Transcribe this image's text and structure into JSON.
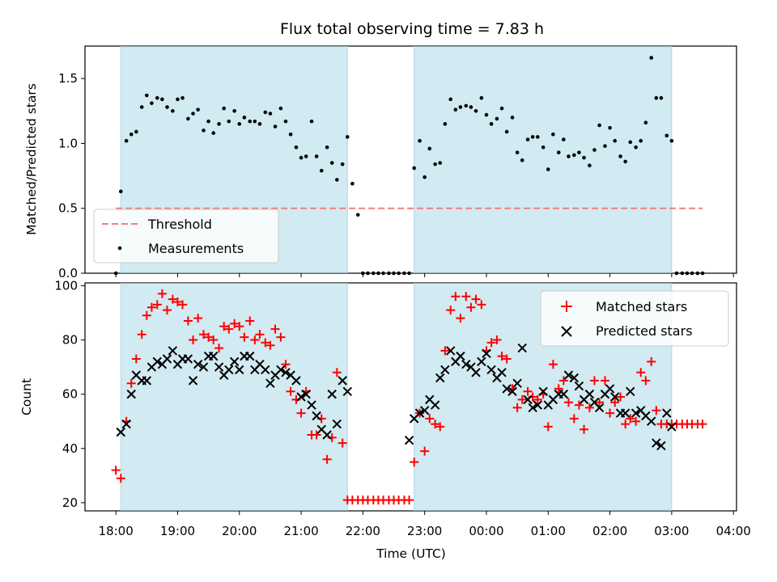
{
  "colors": {
    "band": "#add8e6",
    "threshold": "#f08080",
    "measurements": "#000000",
    "matched": "#ff0000",
    "predicted": "#000000"
  },
  "chart_data": [
    {
      "type": "scatter",
      "title": "Flux total observing time = 7.83 h",
      "xlabel": "",
      "ylabel": "Matched/Predicted stars",
      "xlim": [
        -0.5,
        10.05
      ],
      "ylim": [
        0,
        1.75
      ],
      "yticks": [
        0.0,
        0.5,
        1.0,
        1.5
      ],
      "ytick_labels": [
        "0.0",
        "0.5",
        "1.0",
        "1.5"
      ],
      "xticks": [
        0,
        1,
        2,
        3,
        4,
        5,
        6,
        7,
        8,
        9,
        10
      ],
      "legend": [
        "Threshold",
        "Measurements"
      ],
      "legend_position": "lower left",
      "threshold": {
        "y": 0.5,
        "x_range": [
          0,
          9.5
        ],
        "style": "dashed"
      },
      "observing_bands": [
        [
          0.08,
          3.75
        ],
        [
          4.83,
          9.0
        ]
      ],
      "series": [
        {
          "name": "Measurements",
          "x": [
            0.0,
            0.08,
            0.17,
            0.25,
            0.33,
            0.42,
            0.5,
            0.58,
            0.67,
            0.75,
            0.83,
            0.92,
            1.0,
            1.08,
            1.17,
            1.25,
            1.33,
            1.42,
            1.5,
            1.58,
            1.67,
            1.75,
            1.83,
            1.92,
            2.0,
            2.08,
            2.17,
            2.25,
            2.33,
            2.42,
            2.5,
            2.58,
            2.67,
            2.75,
            2.83,
            2.92,
            3.0,
            3.08,
            3.17,
            3.25,
            3.33,
            3.42,
            3.5,
            3.58,
            3.67,
            3.75,
            3.83,
            3.92,
            4.0,
            4.08,
            4.17,
            4.25,
            4.33,
            4.42,
            4.5,
            4.58,
            4.67,
            4.75,
            4.83,
            4.92,
            5.0,
            5.08,
            5.17,
            5.25,
            5.33,
            5.42,
            5.5,
            5.58,
            5.67,
            5.75,
            5.83,
            5.92,
            6.0,
            6.08,
            6.17,
            6.25,
            6.33,
            6.42,
            6.5,
            6.58,
            6.67,
            6.75,
            6.83,
            6.92,
            7.0,
            7.08,
            7.17,
            7.25,
            7.33,
            7.42,
            7.5,
            7.58,
            7.67,
            7.75,
            7.83,
            7.92,
            8.0,
            8.08,
            8.17,
            8.25,
            8.33,
            8.42,
            8.5,
            8.58,
            8.67,
            8.75,
            8.83,
            8.92,
            9.0,
            9.08,
            9.17,
            9.25,
            9.33,
            9.42,
            9.5
          ],
          "y": [
            0.0,
            0.63,
            1.02,
            1.07,
            1.09,
            1.28,
            1.37,
            1.31,
            1.35,
            1.34,
            1.28,
            1.25,
            1.34,
            1.35,
            1.19,
            1.23,
            1.26,
            1.1,
            1.17,
            1.08,
            1.15,
            1.27,
            1.17,
            1.25,
            1.15,
            1.2,
            1.17,
            1.17,
            1.15,
            1.24,
            1.23,
            1.13,
            1.27,
            1.17,
            1.07,
            0.97,
            0.89,
            0.9,
            1.17,
            0.9,
            0.79,
            0.97,
            0.85,
            0.72,
            0.84,
            1.05,
            0.69,
            0.45,
            0.0,
            0.0,
            0.0,
            0.0,
            0.0,
            0.0,
            0.0,
            0.0,
            0.0,
            0.0,
            0.81,
            1.02,
            0.74,
            0.96,
            0.84,
            0.85,
            1.15,
            1.34,
            1.26,
            1.28,
            1.29,
            1.28,
            1.25,
            1.35,
            1.22,
            1.15,
            1.19,
            1.27,
            1.09,
            1.2,
            0.93,
            0.87,
            1.03,
            1.05,
            1.05,
            0.97,
            0.8,
            1.07,
            0.93,
            1.03,
            0.9,
            0.91,
            0.93,
            0.89,
            0.83,
            0.95,
            1.14,
            0.98,
            1.12,
            1.02,
            0.9,
            0.86,
            1.01,
            0.97,
            1.02,
            1.16,
            1.66,
            1.35,
            1.35,
            1.06,
            1.02,
            0.0,
            0.0,
            0.0,
            0.0,
            0.0,
            0.0
          ]
        }
      ]
    },
    {
      "type": "scatter",
      "title": "",
      "xlabel": "Time (UTC)",
      "ylabel": "Count",
      "xlim": [
        -0.5,
        10.05
      ],
      "ylim": [
        17,
        101
      ],
      "yticks": [
        20,
        40,
        60,
        80,
        100
      ],
      "ytick_labels": [
        "20",
        "40",
        "60",
        "80",
        "100"
      ],
      "xticks": [
        0,
        1,
        2,
        3,
        4,
        5,
        6,
        7,
        8,
        9,
        10
      ],
      "xtick_labels": [
        "18:00",
        "19:00",
        "20:00",
        "21:00",
        "22:00",
        "23:00",
        "00:00",
        "01:00",
        "02:00",
        "03:00",
        "04:00"
      ],
      "legend": [
        "Matched stars",
        "Predicted stars"
      ],
      "legend_position": "upper right",
      "observing_bands": [
        [
          0.08,
          3.75
        ],
        [
          4.83,
          9.0
        ]
      ],
      "series": [
        {
          "name": "Matched stars",
          "marker": "plus",
          "x": [
            0.0,
            0.08,
            0.17,
            0.25,
            0.33,
            0.42,
            0.5,
            0.58,
            0.67,
            0.75,
            0.83,
            0.92,
            1.0,
            1.08,
            1.17,
            1.25,
            1.33,
            1.42,
            1.5,
            1.58,
            1.67,
            1.75,
            1.83,
            1.92,
            2.0,
            2.08,
            2.17,
            2.25,
            2.33,
            2.42,
            2.5,
            2.58,
            2.67,
            2.75,
            2.83,
            2.92,
            3.0,
            3.08,
            3.17,
            3.25,
            3.33,
            3.42,
            3.5,
            3.58,
            3.67,
            3.75,
            3.83,
            3.92,
            4.0,
            4.08,
            4.17,
            4.25,
            4.33,
            4.42,
            4.5,
            4.58,
            4.67,
            4.75,
            4.83,
            4.92,
            5.0,
            5.08,
            5.17,
            5.25,
            5.33,
            5.42,
            5.5,
            5.58,
            5.67,
            5.75,
            5.83,
            5.92,
            6.0,
            6.08,
            6.17,
            6.25,
            6.33,
            6.42,
            6.5,
            6.58,
            6.67,
            6.75,
            6.83,
            6.92,
            7.0,
            7.08,
            7.17,
            7.25,
            7.33,
            7.42,
            7.5,
            7.58,
            7.67,
            7.75,
            7.83,
            7.92,
            8.0,
            8.08,
            8.17,
            8.25,
            8.33,
            8.42,
            8.5,
            8.58,
            8.67,
            8.75,
            8.83,
            8.92,
            9.0,
            9.08,
            9.17,
            9.25,
            9.33,
            9.42,
            9.5
          ],
          "y": [
            32,
            29,
            50,
            64,
            73,
            82,
            89,
            92,
            93,
            97,
            91,
            95,
            94,
            93,
            87,
            80,
            88,
            82,
            81,
            80,
            77,
            85,
            84,
            86,
            85,
            81,
            87,
            80,
            82,
            79,
            78,
            84,
            81,
            71,
            61,
            58,
            53,
            61,
            45,
            45,
            51,
            36,
            44,
            68,
            42,
            21,
            21,
            21,
            21,
            21,
            21,
            21,
            21,
            21,
            21,
            21,
            21,
            21,
            35,
            53,
            39,
            51,
            49,
            48,
            76,
            91,
            96,
            88,
            96,
            92,
            95,
            93,
            76,
            79,
            80,
            74,
            73,
            62,
            55,
            58,
            61,
            59,
            58,
            60,
            48,
            71,
            62,
            65,
            57,
            51,
            56,
            47,
            55,
            65,
            57,
            65,
            53,
            57,
            59,
            49,
            51,
            50,
            68,
            65,
            72,
            54,
            49,
            49,
            49,
            49,
            49,
            49,
            49,
            49,
            49
          ]
        },
        {
          "name": "Predicted stars",
          "marker": "x",
          "x": [
            0.08,
            0.17,
            0.25,
            0.33,
            0.42,
            0.5,
            0.58,
            0.67,
            0.75,
            0.83,
            0.92,
            1.0,
            1.08,
            1.17,
            1.25,
            1.33,
            1.42,
            1.5,
            1.58,
            1.67,
            1.75,
            1.83,
            1.92,
            2.0,
            2.08,
            2.17,
            2.25,
            2.33,
            2.42,
            2.5,
            2.58,
            2.67,
            2.75,
            2.83,
            2.92,
            3.0,
            3.08,
            3.17,
            3.25,
            3.33,
            3.42,
            3.5,
            3.58,
            3.67,
            3.75,
            4.75,
            4.83,
            4.92,
            5.0,
            5.08,
            5.17,
            5.25,
            5.33,
            5.42,
            5.5,
            5.58,
            5.67,
            5.75,
            5.83,
            5.92,
            6.0,
            6.08,
            6.17,
            6.25,
            6.33,
            6.42,
            6.5,
            6.58,
            6.67,
            6.75,
            6.83,
            6.92,
            7.0,
            7.08,
            7.17,
            7.25,
            7.33,
            7.42,
            7.5,
            7.58,
            7.67,
            7.75,
            7.83,
            7.92,
            8.0,
            8.08,
            8.17,
            8.25,
            8.33,
            8.42,
            8.5,
            8.58,
            8.67,
            8.75,
            8.83,
            8.92,
            9.0
          ],
          "y": [
            46,
            49,
            60,
            67,
            65,
            65,
            70,
            72,
            71,
            73,
            76,
            71,
            73,
            73,
            65,
            71,
            70,
            74,
            74,
            70,
            67,
            69,
            72,
            69,
            74,
            74,
            69,
            71,
            69,
            64,
            67,
            69,
            68,
            67,
            65,
            59,
            60,
            56,
            52,
            47,
            45,
            60,
            49,
            65,
            61,
            43,
            51,
            53,
            54,
            58,
            56,
            66,
            69,
            76,
            72,
            74,
            71,
            70,
            68,
            72,
            75,
            69,
            66,
            68,
            62,
            61,
            64,
            77,
            58,
            55,
            56,
            61,
            56,
            58,
            60,
            60,
            67,
            66,
            63,
            58,
            60,
            57,
            55,
            60,
            62,
            59,
            53,
            53,
            61,
            53,
            54,
            52,
            50,
            42,
            41,
            53,
            48
          ]
        }
      ]
    }
  ]
}
